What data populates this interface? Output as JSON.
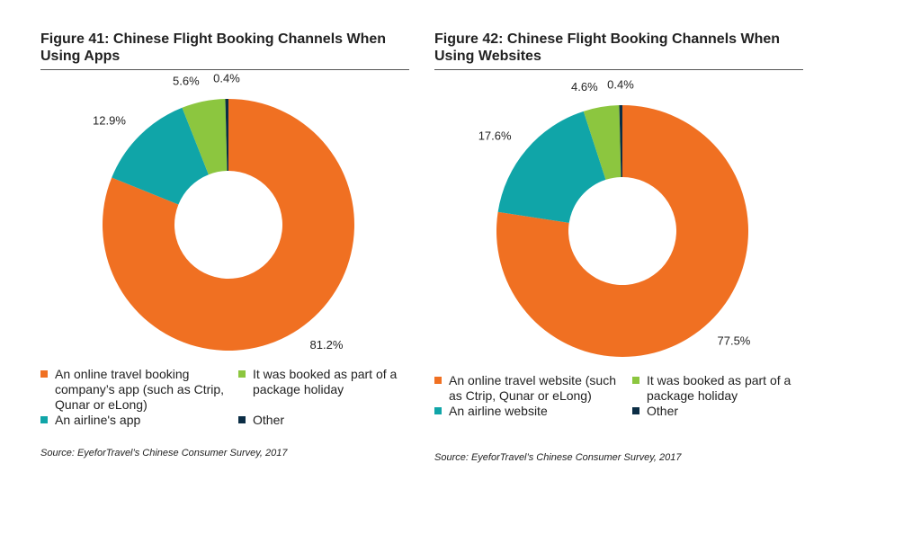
{
  "chart_data": [
    {
      "type": "donut",
      "title": "Figure 41: Chinese Flight Booking Channels When Using Apps",
      "categories": [
        "An online travel booking company’s app (such as Ctrip, Qunar or eLong)",
        "An airline's app",
        "It was booked as part of a package holiday",
        "Other"
      ],
      "values": [
        81.2,
        12.9,
        5.6,
        0.4
      ],
      "value_labels": [
        "81.2%",
        "12.9%",
        "5.6%",
        "0.4%"
      ],
      "colors": [
        "#f07022",
        "#10a5a8",
        "#8cc63f",
        "#0b2d45"
      ],
      "source": "Source: EyeforTravel’s Chinese Consumer Survey, 2017"
    },
    {
      "type": "donut",
      "title": "Figure 42: Chinese Flight Booking Channels When Using Websites",
      "categories": [
        "An online travel website (such as Ctrip, Qunar or eLong)",
        "An airline website",
        "It was booked as part of a package holiday",
        "Other"
      ],
      "values": [
        77.5,
        17.6,
        4.6,
        0.4
      ],
      "value_labels": [
        "77.5%",
        "17.6%",
        "4.6%",
        "0.4%"
      ],
      "colors": [
        "#f07022",
        "#10a5a8",
        "#8cc63f",
        "#0b2d45"
      ],
      "source": "Source: EyeforTravel’s Chinese Consumer Survey, 2017"
    }
  ]
}
